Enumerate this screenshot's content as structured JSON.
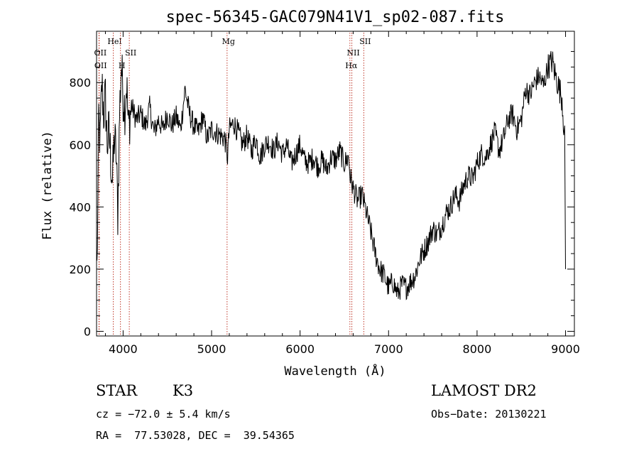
{
  "chart_data": {
    "type": "line",
    "title": "spec-56345-GAC079N41V1_sp02-087.fits",
    "xlabel": "Wavelength (Å)",
    "ylabel": "Flux (relative)",
    "xlim": [
      3700,
      9100
    ],
    "ylim": [
      -15,
      965
    ],
    "xticks": [
      4000,
      5000,
      6000,
      7000,
      8000,
      9000
    ],
    "yticks": [
      0,
      200,
      400,
      600,
      800
    ],
    "grid": false,
    "legend": "none",
    "series": [
      {
        "color": "#000000",
        "x": [
          3705,
          3715,
          3725,
          3740,
          3760,
          3780,
          3800,
          3820,
          3840,
          3860,
          3880,
          3900,
          3920,
          3940,
          3960,
          3980,
          4000,
          4020,
          4040,
          4060,
          4080,
          4100,
          4150,
          4200,
          4250,
          4300,
          4350,
          4400,
          4450,
          4500,
          4550,
          4600,
          4650,
          4700,
          4750,
          4800,
          4850,
          4900,
          4950,
          5000,
          5050,
          5100,
          5150,
          5180,
          5200,
          5250,
          5300,
          5350,
          5400,
          5450,
          5500,
          5550,
          5600,
          5650,
          5700,
          5750,
          5800,
          5850,
          5900,
          5950,
          6000,
          6050,
          6100,
          6150,
          6200,
          6250,
          6300,
          6350,
          6400,
          6450,
          6500,
          6550,
          6565,
          6600,
          6650,
          6700,
          6750,
          6800,
          6850,
          6900,
          6950,
          7000,
          7050,
          7100,
          7150,
          7200,
          7250,
          7300,
          7350,
          7400,
          7450,
          7500,
          7550,
          7600,
          7650,
          7700,
          7750,
          7800,
          7850,
          7900,
          7950,
          8000,
          8050,
          8100,
          8150,
          8200,
          8250,
          8300,
          8350,
          8400,
          8450,
          8500,
          8550,
          8600,
          8650,
          8700,
          8750,
          8800,
          8850,
          8880,
          8900,
          8930,
          8960,
          8990,
          9000
        ],
        "y": [
          200,
          400,
          700,
          600,
          800,
          700,
          750,
          600,
          640,
          560,
          480,
          620,
          580,
          380,
          700,
          860,
          760,
          720,
          800,
          650,
          700,
          720,
          680,
          700,
          660,
          720,
          640,
          680,
          650,
          700,
          660,
          690,
          650,
          780,
          700,
          660,
          640,
          690,
          620,
          650,
          640,
          630,
          620,
          560,
          650,
          670,
          640,
          600,
          630,
          580,
          620,
          560,
          600,
          610,
          580,
          610,
          570,
          600,
          540,
          570,
          600,
          550,
          540,
          560,
          530,
          550,
          520,
          560,
          550,
          580,
          540,
          560,
          500,
          460,
          420,
          440,
          380,
          320,
          250,
          200,
          180,
          140,
          160,
          120,
          150,
          140,
          160,
          180,
          230,
          260,
          290,
          330,
          310,
          340,
          380,
          400,
          440,
          420,
          470,
          500,
          490,
          540,
          570,
          560,
          600,
          640,
          580,
          620,
          680,
          700,
          650,
          680,
          780,
          760,
          800,
          820,
          790,
          850,
          870,
          830,
          810,
          780,
          750,
          620,
          200
        ]
      }
    ],
    "spectral_lines": [
      {
        "name": "OII",
        "wavelength": 3727
      },
      {
        "name": "OII",
        "wavelength": 3730
      },
      {
        "name": "HeI",
        "wavelength": 3889
      },
      {
        "name": "H",
        "wavelength": 3970
      },
      {
        "name": "SII",
        "wavelength": 4070
      },
      {
        "name": "Mg",
        "wavelength": 5175
      },
      {
        "name": "NII",
        "wavelength": 6585
      },
      {
        "name": "Hα",
        "wavelength": 6563
      },
      {
        "name": "SII",
        "wavelength": 6720
      }
    ]
  },
  "info": {
    "class": "STAR",
    "subclass": "K3",
    "survey": "LAMOST DR2",
    "cz": "cz = −72.0 ± 5.4 km/s",
    "obs_date": "Obs−Date: 20130221",
    "radec": "RA =  77.53028, DEC =  39.54365"
  }
}
